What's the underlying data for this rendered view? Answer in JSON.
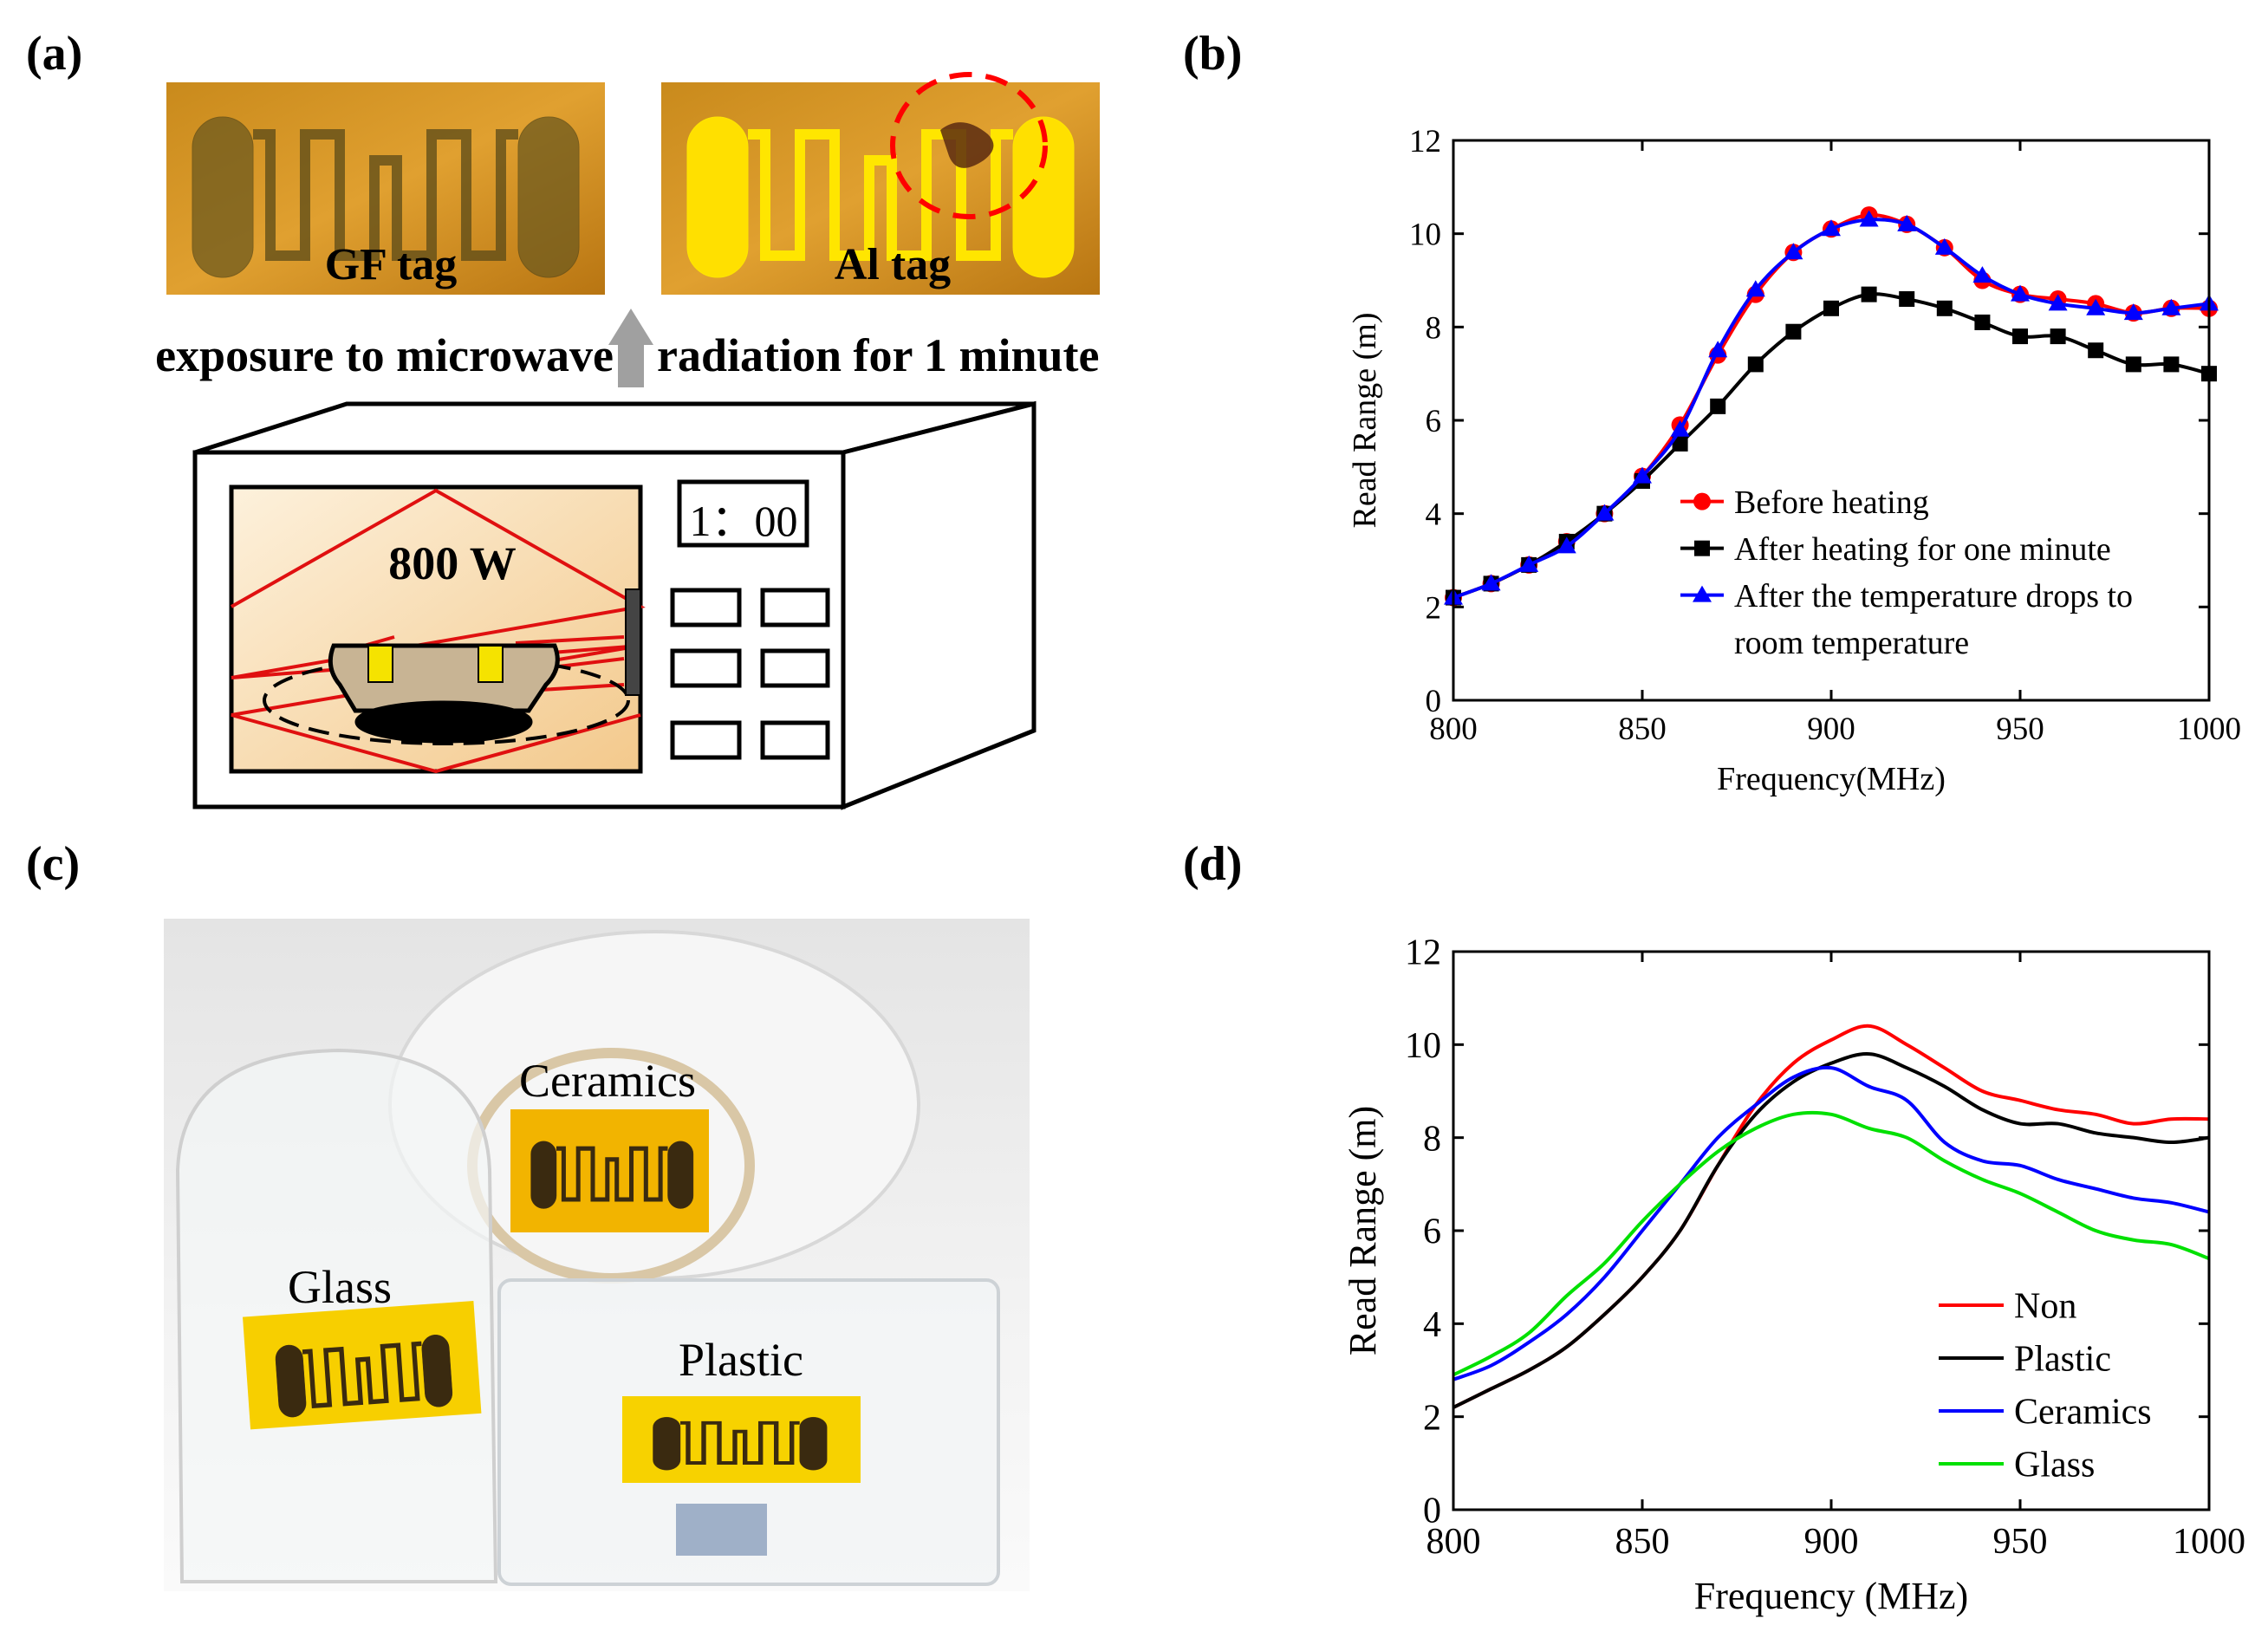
{
  "panel_labels": [
    "(a)",
    "(b)",
    "(c)",
    "(d)"
  ],
  "panel_a": {
    "tags": [
      "GF tag",
      "Al tag"
    ],
    "caption_left": "exposure to microwave",
    "caption_right": "radiation for 1 minute",
    "power": "800 W",
    "timer": "1：00"
  },
  "panel_c": {
    "labels": [
      "Ceramics",
      "Glass",
      "Plastic"
    ]
  },
  "chart_data": [
    {
      "type": "line",
      "xlabel": "Frequency(MHz)",
      "ylabel": "Read Range (m)",
      "x": [
        800,
        810,
        820,
        830,
        840,
        850,
        860,
        870,
        880,
        890,
        900,
        910,
        920,
        930,
        940,
        950,
        960,
        970,
        980,
        990,
        1000
      ],
      "xlim": [
        800,
        1000
      ],
      "xticks": [
        800,
        850,
        900,
        950,
        1000
      ],
      "ylim": [
        0,
        12
      ],
      "yticks": [
        0,
        2,
        4,
        6,
        8,
        10,
        12
      ],
      "legend": "center right",
      "series": [
        {
          "name": "Before heating",
          "color": "#ff0000",
          "marker": "circle",
          "values": [
            2.2,
            2.5,
            2.9,
            3.4,
            4.0,
            4.8,
            5.9,
            7.4,
            8.7,
            9.6,
            10.1,
            10.4,
            10.2,
            9.7,
            9.0,
            8.7,
            8.6,
            8.5,
            8.3,
            8.4,
            8.4
          ]
        },
        {
          "name": "After heating for one minute",
          "color": "#000000",
          "marker": "square",
          "values": [
            2.2,
            2.5,
            2.9,
            3.4,
            4.0,
            4.7,
            5.5,
            6.3,
            7.2,
            7.9,
            8.4,
            8.7,
            8.6,
            8.4,
            8.1,
            7.8,
            7.8,
            7.5,
            7.2,
            7.2,
            7.0
          ]
        },
        {
          "name": "After the temperature drops to room temperature",
          "color": "#0000ff",
          "marker": "triangle",
          "values": [
            2.2,
            2.5,
            2.9,
            3.3,
            4.0,
            4.8,
            5.8,
            7.5,
            8.8,
            9.6,
            10.1,
            10.3,
            10.2,
            9.7,
            9.1,
            8.7,
            8.5,
            8.4,
            8.3,
            8.4,
            8.5
          ]
        }
      ]
    },
    {
      "type": "line",
      "xlabel": "Frequency (MHz)",
      "ylabel": "Read Range (m)",
      "x": [
        800,
        810,
        820,
        830,
        840,
        850,
        860,
        870,
        880,
        890,
        900,
        910,
        920,
        930,
        940,
        950,
        960,
        970,
        980,
        990,
        1000
      ],
      "xlim": [
        800,
        1000
      ],
      "xticks": [
        800,
        850,
        900,
        950,
        1000
      ],
      "ylim": [
        0,
        12
      ],
      "yticks": [
        0,
        2,
        4,
        6,
        8,
        10,
        12
      ],
      "legend": "lower right",
      "series": [
        {
          "name": "Non",
          "color": "#ff0000",
          "values": [
            2.2,
            2.6,
            3.0,
            3.5,
            4.2,
            5.0,
            6.0,
            7.4,
            8.7,
            9.6,
            10.1,
            10.4,
            10.0,
            9.5,
            9.0,
            8.8,
            8.6,
            8.5,
            8.3,
            8.4,
            8.4
          ]
        },
        {
          "name": "Plastic",
          "color": "#000000",
          "values": [
            2.2,
            2.6,
            3.0,
            3.5,
            4.2,
            5.0,
            6.0,
            7.4,
            8.5,
            9.2,
            9.6,
            9.8,
            9.5,
            9.1,
            8.6,
            8.3,
            8.3,
            8.1,
            8.0,
            7.9,
            8.0
          ]
        },
        {
          "name": "Ceramics",
          "color": "#0000ff",
          "values": [
            2.8,
            3.1,
            3.6,
            4.2,
            5.0,
            6.0,
            7.0,
            8.0,
            8.7,
            9.3,
            9.5,
            9.1,
            8.8,
            7.9,
            7.5,
            7.4,
            7.1,
            6.9,
            6.7,
            6.6,
            6.4
          ]
        },
        {
          "name": "Glass",
          "color": "#00e000",
          "values": [
            2.9,
            3.3,
            3.8,
            4.6,
            5.3,
            6.2,
            7.0,
            7.7,
            8.2,
            8.5,
            8.5,
            8.2,
            8.0,
            7.5,
            7.1,
            6.8,
            6.4,
            6.0,
            5.8,
            5.7,
            5.4
          ]
        }
      ]
    }
  ]
}
